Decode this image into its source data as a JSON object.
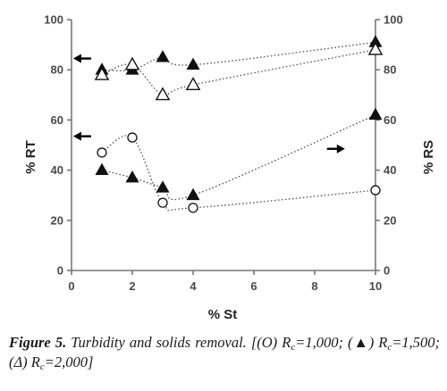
{
  "chart_data": {
    "type": "scatter",
    "xlabel": "% St",
    "ylabel_left": "% RT",
    "ylabel_right": "% RS",
    "xlim": [
      0,
      10
    ],
    "ylim": [
      0,
      100
    ],
    "x_ticks": [
      "0",
      "2",
      "4",
      "6",
      "8",
      "10"
    ],
    "y_ticks": [
      "0",
      "20",
      "40",
      "60",
      "80",
      "100"
    ],
    "grid": false,
    "series": [
      {
        "axis": "RT",
        "marker": "filled-triangle",
        "x": [
          1,
          2,
          3,
          4,
          10
        ],
        "y": [
          80,
          80,
          85,
          82,
          91
        ]
      },
      {
        "axis": "RT",
        "marker": "open-triangle",
        "x": [
          1,
          2,
          3,
          4,
          10
        ],
        "y": [
          78,
          82,
          70,
          74,
          88
        ]
      },
      {
        "axis": "RS",
        "marker": "open-circle",
        "x": [
          1,
          2,
          3,
          4,
          10
        ],
        "y": [
          47,
          53,
          27,
          25,
          32
        ]
      },
      {
        "axis": "RS",
        "marker": "filled-triangle",
        "x": [
          1,
          2,
          3,
          4,
          10
        ],
        "y": [
          40,
          37,
          33,
          30,
          62
        ]
      }
    ],
    "annotations": [
      {
        "kind": "arrow-left",
        "points_to": "% RT axis"
      },
      {
        "kind": "arrow-left",
        "points_to": "% RT axis"
      },
      {
        "kind": "arrow-right",
        "points_to": "% RS axis"
      }
    ]
  },
  "caption": {
    "figure_label": "Figure 5.",
    "text_1": " Turbidity and solids removal. [(O) R",
    "sub_1": "c",
    "text_2": "=1,000; (▲) R",
    "sub_2": "c",
    "text_3": "=1,500; (Δ) R",
    "sub_3": "c",
    "text_4": "=2,000]"
  }
}
